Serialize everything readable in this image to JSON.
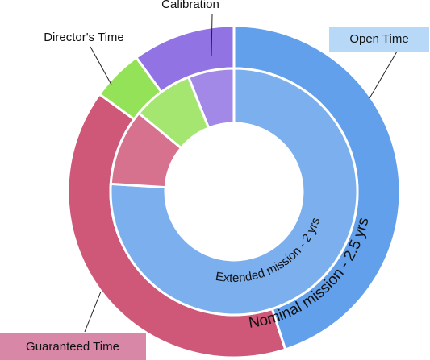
{
  "chart_data": {
    "type": "sunburst",
    "categories": [
      "Open Time",
      "Guaranteed Time",
      "Director's Time",
      "Calibration"
    ],
    "colors": [
      "#5b9bea",
      "#cc4f72",
      "#8ee04e",
      "#8b6ce2"
    ],
    "series": [
      {
        "name": "Nominal mission - 2.5 yrs",
        "values": [
          45,
          40,
          5,
          10
        ]
      },
      {
        "name": "Extended mission - 2 yrs",
        "values": [
          76,
          10,
          8,
          6
        ]
      }
    ]
  }
}
